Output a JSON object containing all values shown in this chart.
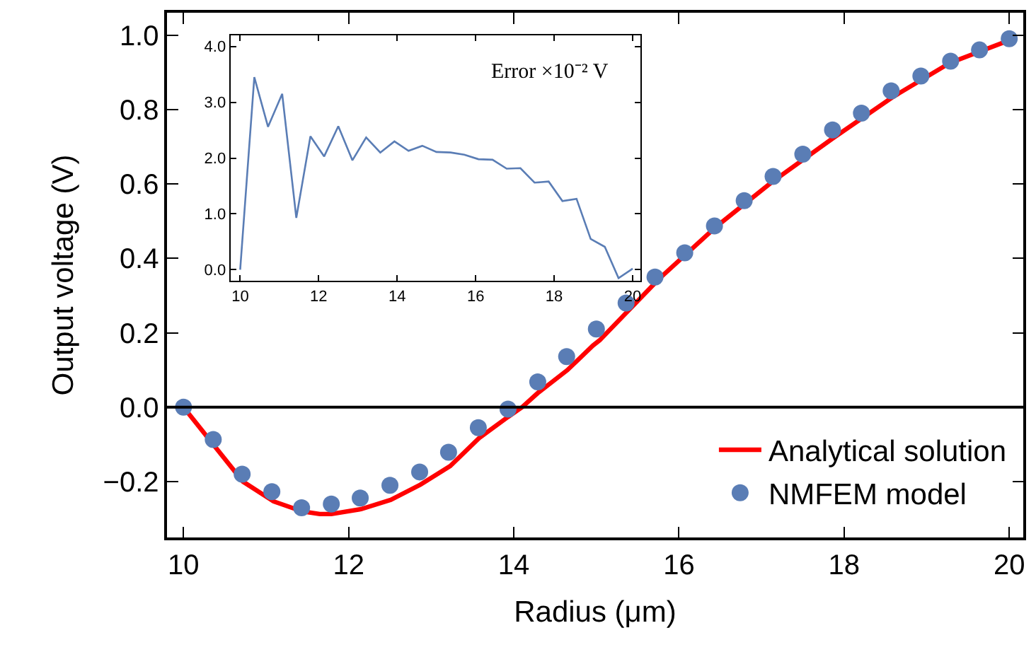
{
  "chart_data": [
    {
      "type": "line",
      "xlabel": "Radius (μm)",
      "ylabel": "Output voltage (V)",
      "xlim": [
        9.8,
        20.17
      ],
      "ylim": [
        -0.35,
        1.06
      ],
      "xticks": [
        10,
        12,
        14,
        16,
        18,
        20
      ],
      "yticks": [
        {
          "value": -0.2,
          "label": "−0.2"
        },
        {
          "value": 0,
          "label": "0.0"
        },
        {
          "value": 0.2,
          "label": "0.2"
        },
        {
          "value": 0.4,
          "label": "0.4"
        },
        {
          "value": 0.6,
          "label": "0.6"
        },
        {
          "value": 0.8,
          "label": "0.8"
        },
        {
          "value": 1.0,
          "label": "1.0"
        }
      ],
      "legend": "bottom right",
      "ref_lines": [
        {
          "axis": "y",
          "value": 0,
          "color": "#000000"
        }
      ],
      "series": [
        {
          "name": "Analytical solution",
          "type": "line",
          "color": "#ff0000",
          "marker": "none",
          "x": [
            10,
            10.36,
            10.72,
            11.09,
            11.44,
            11.65,
            11.79,
            12.15,
            12.51,
            12.87,
            13.23,
            13.58,
            13.93,
            14.1,
            14.29,
            14.65,
            14.96,
            15.04,
            15.76,
            16.44,
            17.12,
            17.86,
            18.6,
            19.28,
            20
          ],
          "values": [
            0,
            -0.1,
            -0.2,
            -0.253,
            -0.28,
            -0.287,
            -0.287,
            -0.274,
            -0.249,
            -0.208,
            -0.158,
            -0.083,
            -0.026,
            0,
            0.038,
            0.1,
            0.166,
            0.18,
            0.345,
            0.483,
            0.604,
            0.722,
            0.835,
            0.925,
            0.986
          ]
        },
        {
          "name": "NMFEM model",
          "type": "scatter",
          "color": "#5a7db5",
          "marker": "circle",
          "x": [
            10,
            10.36,
            10.71,
            11.07,
            11.43,
            11.79,
            12.14,
            12.5,
            12.86,
            13.21,
            13.57,
            13.93,
            14.29,
            14.64,
            15,
            15.36,
            15.71,
            16.07,
            16.43,
            16.79,
            17.14,
            17.5,
            17.86,
            18.21,
            18.57,
            18.93,
            19.29,
            19.64,
            20
          ],
          "values": [
            0,
            -0.087,
            -0.18,
            -0.227,
            -0.27,
            -0.26,
            -0.244,
            -0.21,
            -0.174,
            -0.121,
            -0.055,
            -0.005,
            0.068,
            0.136,
            0.21,
            0.28,
            0.35,
            0.415,
            0.487,
            0.555,
            0.62,
            0.68,
            0.745,
            0.79,
            0.85,
            0.89,
            0.93,
            0.96,
            0.99
          ]
        }
      ]
    },
    {
      "type": "line",
      "annotations": [
        "Error ×10⁻² V"
      ],
      "xlim": [
        9.75,
        20.2
      ],
      "ylim": [
        -0.2,
        4.2
      ],
      "xticks": [
        10,
        12,
        14,
        16,
        18,
        20
      ],
      "yticks": [
        {
          "value": 0,
          "label": "0.0"
        },
        {
          "value": 1,
          "label": "1.0"
        },
        {
          "value": 2,
          "label": "2.0"
        },
        {
          "value": 3,
          "label": "3.0"
        },
        {
          "value": 4,
          "label": "4.0"
        }
      ],
      "legend": false,
      "series": [
        {
          "color": "#5a7db5",
          "x": [
            10,
            10.36,
            10.71,
            11.07,
            11.43,
            11.79,
            12.14,
            12.5,
            12.86,
            13.21,
            13.57,
            13.93,
            14.29,
            14.64,
            15,
            15.36,
            15.71,
            16.07,
            16.43,
            16.79,
            17.14,
            17.5,
            17.86,
            18.21,
            18.57,
            18.93,
            19.29,
            19.64,
            20
          ],
          "values": [
            0,
            3.45,
            2.56,
            3.15,
            0.93,
            2.39,
            2.03,
            2.57,
            1.96,
            2.37,
            2.1,
            2.3,
            2.13,
            2.22,
            2.11,
            2.1,
            2.06,
            1.98,
            1.97,
            1.81,
            1.82,
            1.56,
            1.58,
            1.23,
            1.27,
            0.55,
            0.41,
            -0.15,
            0.02
          ]
        }
      ]
    }
  ]
}
